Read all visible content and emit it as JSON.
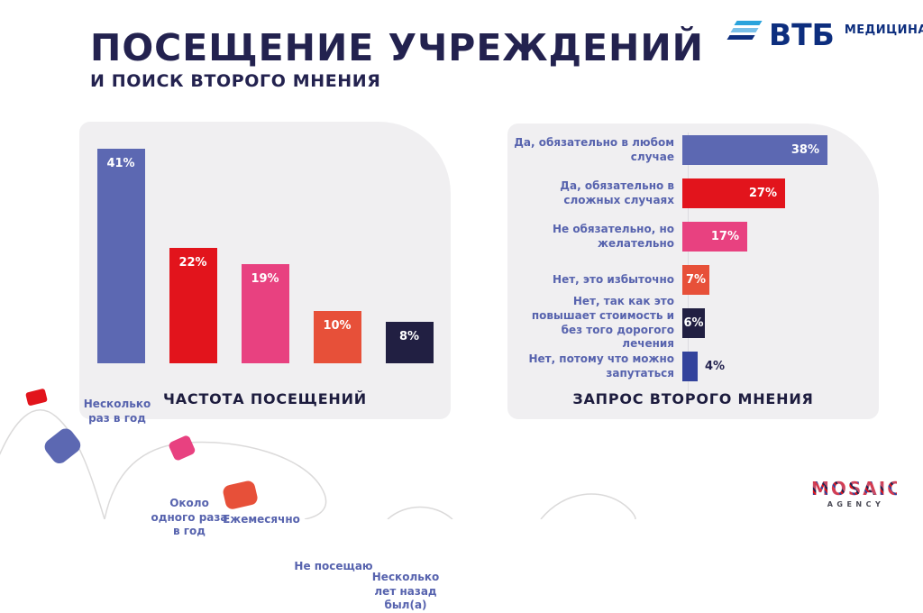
{
  "slide": {
    "title": "ПОСЕЩЕНИЕ УЧРЕЖДЕНИЙ",
    "subtitle": "И ПОИСК ВТОРОГО МНЕНИЯ"
  },
  "brand": {
    "wordmark": "ВТБ",
    "division": "МЕДИЦИНА"
  },
  "footer_logo": {
    "name": "MOSAIC",
    "sub": "AGENCY"
  },
  "colors": {
    "title_navy": "#23224f",
    "panel_gray": "#f0eff1",
    "label_blue": "#5763ae",
    "vtb_blue": "#0d2e7e",
    "accent_red": "#e2141c",
    "accent_pink": "#e84180",
    "accent_orange": "#e75039",
    "accent_periwinkle": "#5c68b2",
    "accent_dark_navy": "#211f42",
    "accent_royal_blue": "#33439c"
  },
  "chart_data": [
    {
      "type": "bar",
      "orientation": "vertical",
      "title": "ЧАСТОТА ПОСЕЩЕНИЙ",
      "categories": [
        "Несколько раз в год",
        "Около одного раза в год",
        "Ежемесячно",
        "Не посещаю",
        "Несколько лет назад был(а)"
      ],
      "values": [
        41,
        22,
        19,
        10,
        8
      ],
      "value_labels": [
        "41%",
        "22%",
        "19%",
        "10%",
        "8%"
      ],
      "bar_colors": [
        "#5c68b2",
        "#e2141c",
        "#e84180",
        "#e75039",
        "#211f42"
      ],
      "ylim": [
        0,
        45
      ],
      "grid": false,
      "legend": false
    },
    {
      "type": "bar",
      "orientation": "horizontal",
      "title": "ЗАПРОС ВТОРОГО МНЕНИЯ",
      "categories": [
        "Да, обязательно в любом случае",
        "Да, обязательно в сложных случаях",
        "Не обязательно, но желательно",
        "Нет, это избыточно",
        "Нет, так как это повышает стоимость и без того дорогого лечения",
        "Нет, потому что можно запутаться"
      ],
      "values": [
        38,
        27,
        17,
        7,
        6,
        4
      ],
      "value_labels": [
        "38%",
        "27%",
        "17%",
        "7%",
        "6%",
        "4%"
      ],
      "bar_colors": [
        "#5c68b2",
        "#e2141c",
        "#e84180",
        "#e75039",
        "#211f42",
        "#33439c"
      ],
      "xlim": [
        0,
        40
      ],
      "grid": false,
      "legend": false
    }
  ]
}
